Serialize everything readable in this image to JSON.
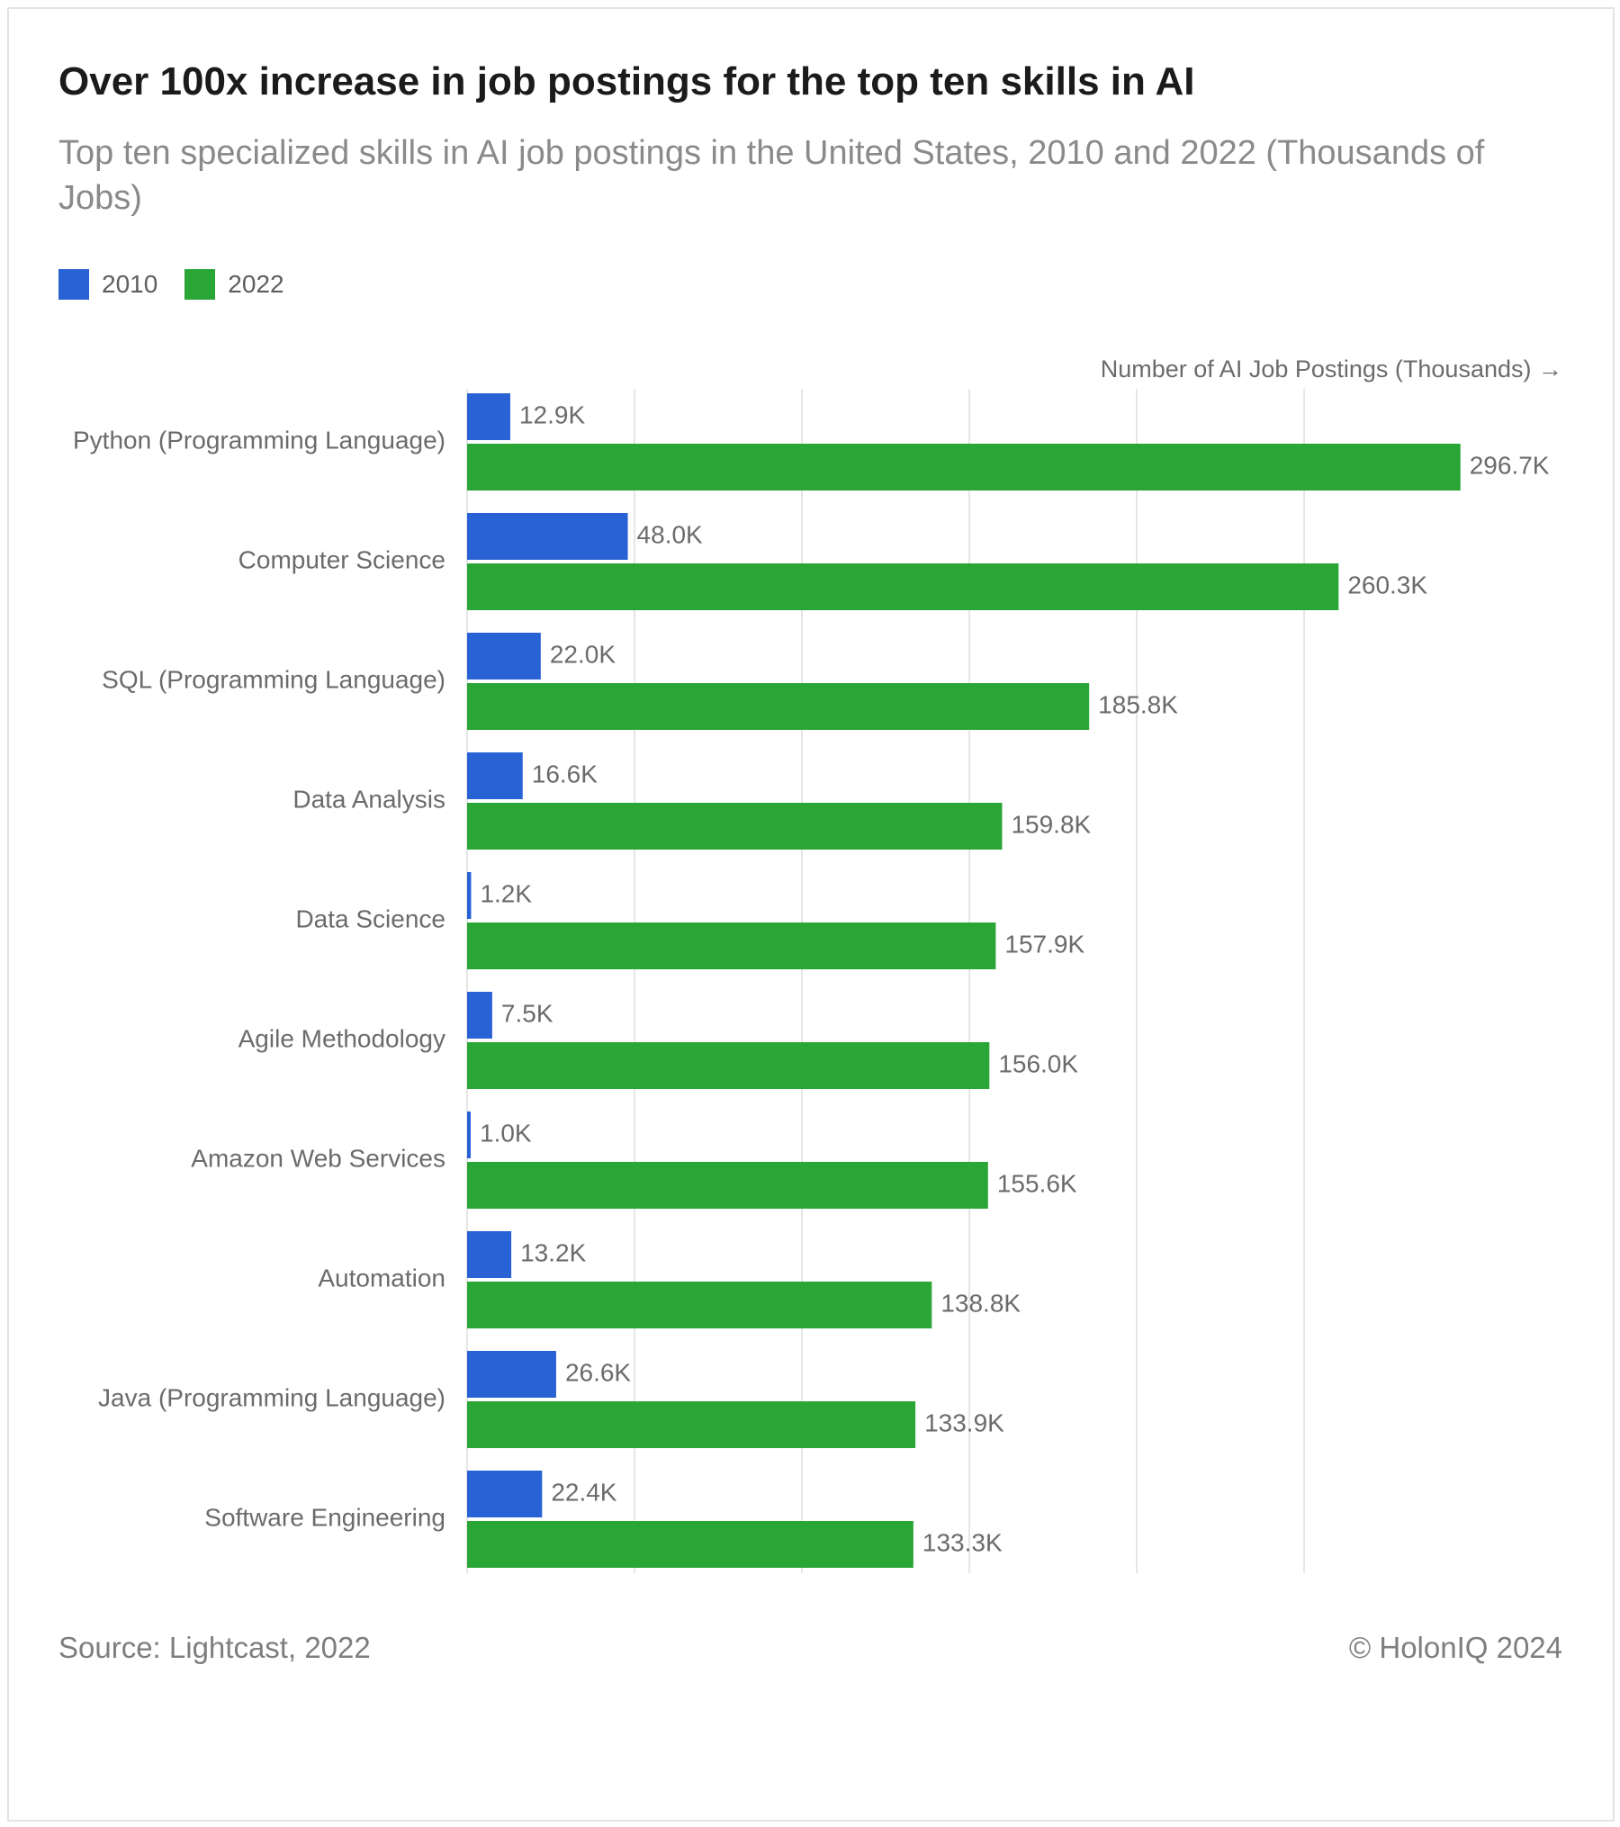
{
  "title": "Over 100x increase in job postings for the top ten skills in AI",
  "subtitle": "Top ten specialized skills in AI job postings in the United States, 2010 and 2022 (Thousands of Jobs)",
  "axis_label": "Number of AI Job Postings (Thousands) →",
  "source": "Source: Lightcast, 2022",
  "credit": "© HolonIQ 2024",
  "colors": {
    "series_2010": "#2962d4",
    "series_2022": "#2aa637",
    "gridline": "#e6e6e6",
    "category_text": "#6b6b6b",
    "value_text": "#6b6b6b"
  },
  "chart_data": {
    "type": "bar",
    "orientation": "horizontal",
    "title": "Over 100x increase in job postings for the top ten skills in AI",
    "subtitle": "Top ten specialized skills in AI job postings in the United States, 2010 and 2022 (Thousands of Jobs)",
    "xlabel": "Number of AI Job Postings (Thousands) →",
    "ylabel": "",
    "xlim": [
      0,
      300
    ],
    "grid": true,
    "legend_position": "top-left",
    "value_suffix": "K",
    "categories": [
      "Python (Programming Language)",
      "Computer Science",
      "SQL (Programming Language)",
      "Data Analysis",
      "Data Science",
      "Agile Methodology",
      "Amazon Web Services",
      "Automation",
      "Java (Programming Language)",
      "Software Engineering"
    ],
    "series": [
      {
        "name": "2010",
        "color": "#2962d4",
        "values": [
          12.9,
          48.0,
          22.0,
          16.6,
          1.2,
          7.5,
          1.0,
          13.2,
          26.6,
          22.4
        ],
        "labels": [
          "12.9K",
          "48.0K",
          "22.0K",
          "16.6K",
          "1.2K",
          "7.5K",
          "1.0K",
          "13.2K",
          "26.6K",
          "22.4K"
        ]
      },
      {
        "name": "2022",
        "color": "#2aa637",
        "values": [
          296.7,
          260.3,
          185.8,
          159.8,
          157.9,
          156.0,
          155.6,
          138.8,
          133.9,
          133.3
        ],
        "labels": [
          "296.7K",
          "260.3K",
          "185.8K",
          "159.8K",
          "157.9K",
          "156.0K",
          "155.6K",
          "138.8K",
          "133.9K",
          "133.3K"
        ]
      }
    ]
  }
}
